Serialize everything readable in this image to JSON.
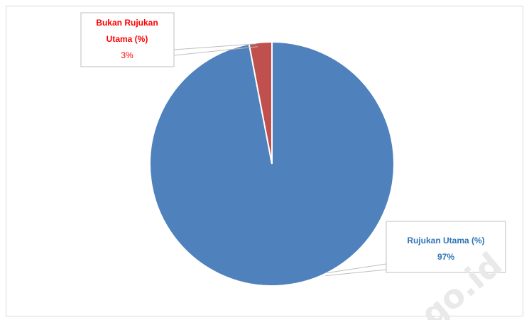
{
  "chart_data": {
    "type": "pie",
    "series": [
      {
        "name": "Bukan Rujukan Utama (%)",
        "value": 3,
        "label": "3%",
        "label_lines": [
          "Bukan Rujukan",
          "Utama (%)",
          "3%"
        ],
        "color": "#c0504d"
      },
      {
        "name": "Rujukan Utama (%)",
        "value": 97,
        "label": "97%",
        "label_lines": [
          "Rujukan Utama (%)",
          "97%"
        ],
        "color": "#4f81bd"
      }
    ],
    "legend": "none",
    "data_labels": "callout-boxes"
  },
  "watermark": "go.id"
}
